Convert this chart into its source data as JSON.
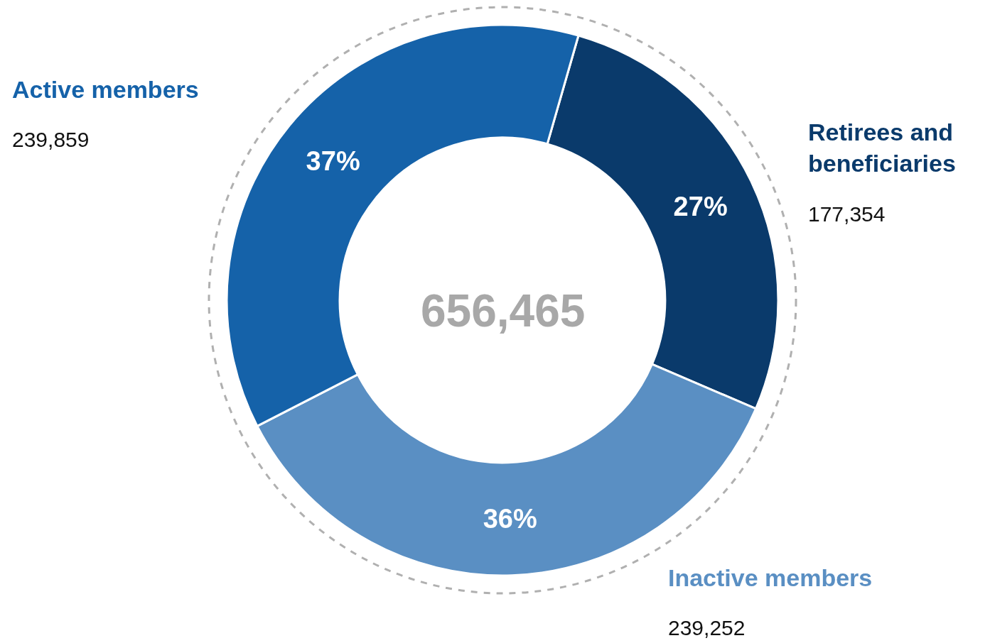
{
  "chart_data": {
    "type": "donut",
    "categories": [
      "Retirees and beneficiaries",
      "Inactive members",
      "Active members"
    ],
    "values": [
      27,
      36,
      37
    ],
    "colors": [
      "#0a3a6b",
      "#5a8fc3",
      "#1562a9"
    ],
    "value_labels": [
      "27%",
      "36%",
      "37%"
    ],
    "annotations": [
      "177,354",
      "239,252",
      "239,859",
      "656,465"
    ],
    "legend": false
  }
}
